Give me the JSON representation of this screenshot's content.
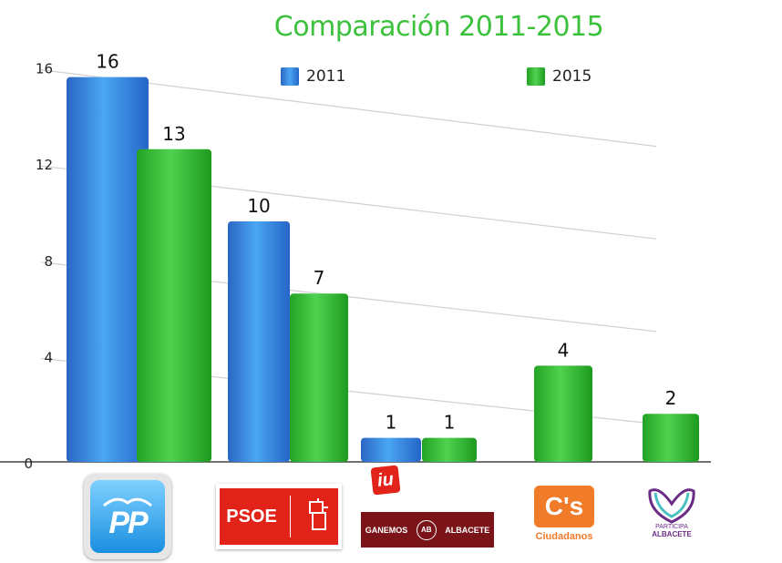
{
  "chart_data": {
    "type": "bar",
    "title": "Comparación 2011-2015",
    "categories": [
      "PP",
      "PSOE",
      "IU / Ganemos",
      "C's",
      "Participa"
    ],
    "series": [
      {
        "name": "2011",
        "values": [
          16,
          10,
          1,
          null,
          null
        ],
        "color": "#2f78d6"
      },
      {
        "name": "2015",
        "values": [
          13,
          7,
          1,
          4,
          2
        ],
        "color": "#2fb82f"
      }
    ],
    "yticks": [
      0,
      4,
      8,
      12,
      16
    ],
    "ylim": [
      0,
      18
    ],
    "grid": true,
    "legend": "top"
  },
  "logos": {
    "pp": "PP",
    "psoe": "PSOE",
    "iu": "iu",
    "ganemos": "GANEMOS",
    "ganemos_ab": "AB",
    "ganemos_city": "ALBACETE",
    "cs": "C's",
    "cs_sub": "Ciudadanos",
    "participa_line1": "PARTICIPA",
    "participa_line2": "ALBACETE"
  },
  "colors": {
    "title": "#3cc13c",
    "blue": "#2f78d6",
    "green": "#2fb82f",
    "psoe_red": "#e2231a",
    "ganemos_maroon": "#7a1418",
    "cs_orange": "#f07b28",
    "participa_purple": "#6b2c86"
  }
}
